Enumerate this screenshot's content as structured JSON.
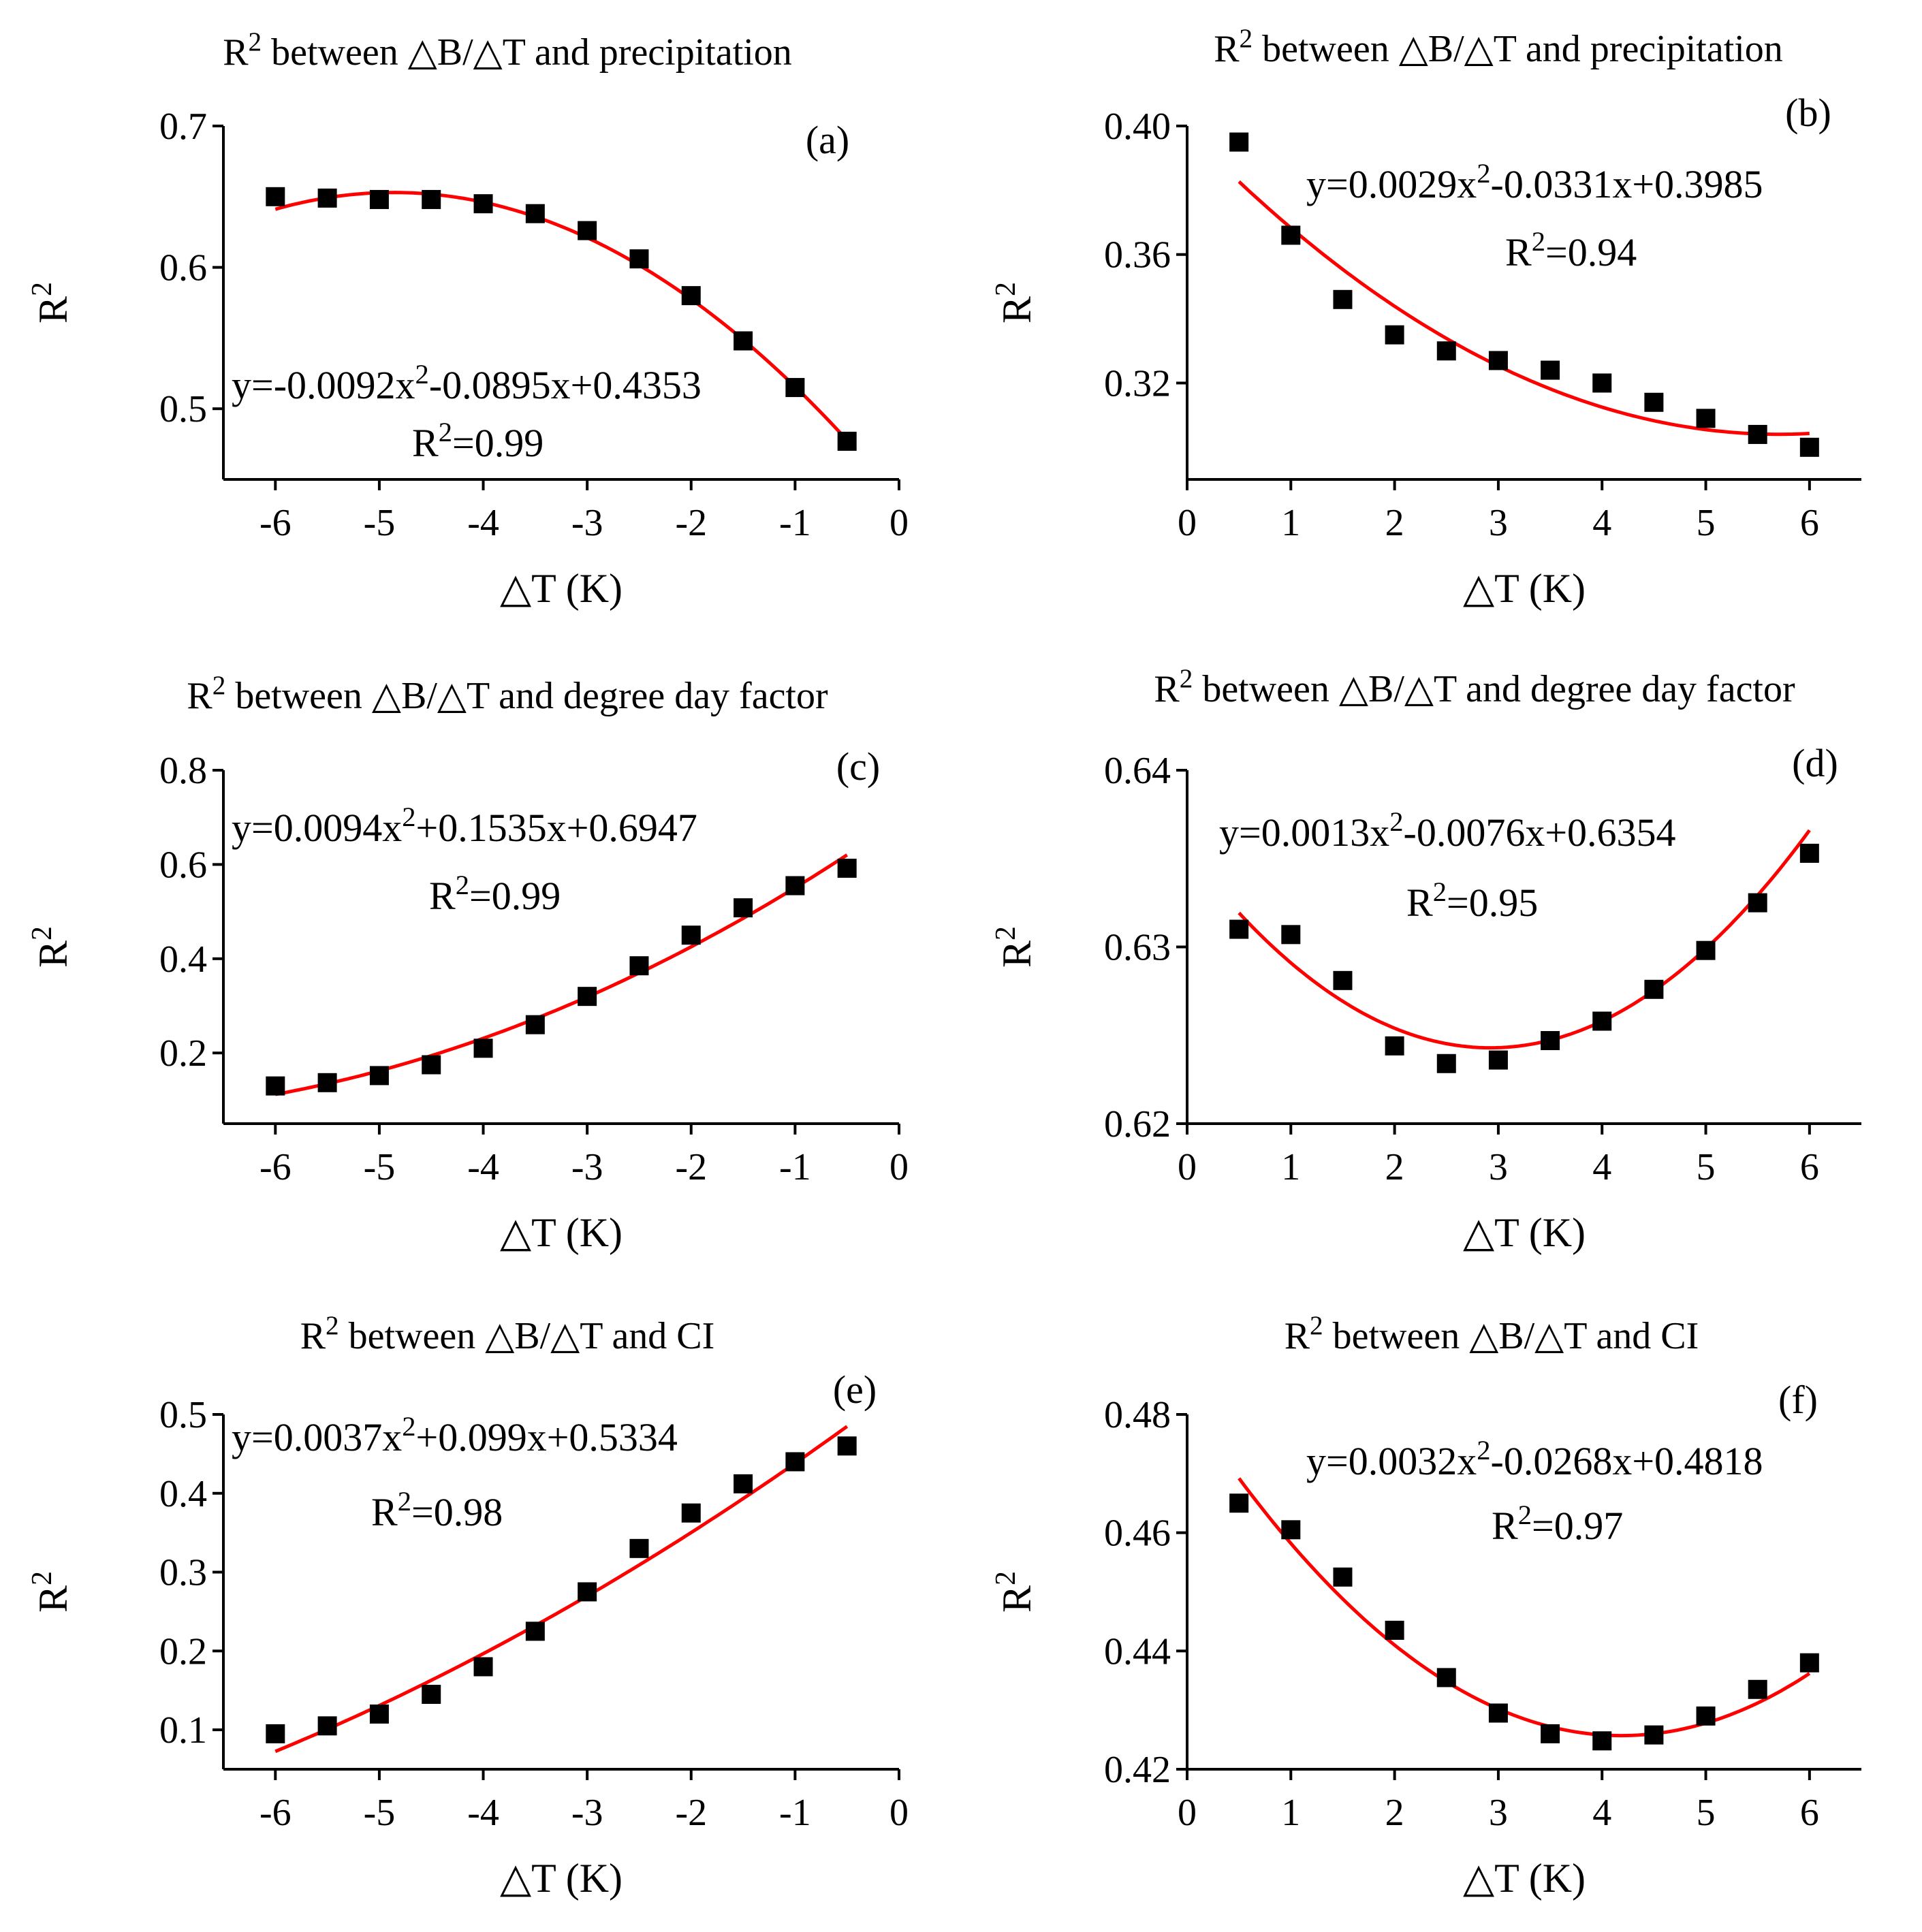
{
  "colors": {
    "fit": "#ff0000",
    "points": "#000000",
    "axes": "#000000"
  },
  "chart_data": [
    {
      "id": "a",
      "type": "scatter",
      "panel_label": "(a)",
      "title": {
        "pre": "R",
        "sup": "2",
        "post": " between △B/△T and  precipitation"
      },
      "xlabel": "△T (K)",
      "ylabel": {
        "pre": "R",
        "sup": "2"
      },
      "xlim": [
        -6.5,
        0
      ],
      "ylim": [
        0.45,
        0.7
      ],
      "xticks": [
        -6,
        -5,
        -4,
        -3,
        -2,
        -1,
        0
      ],
      "xtick_labels": [
        "-6",
        "-5",
        "-4",
        "-3",
        "-2",
        "-1",
        "0"
      ],
      "yticks": [
        0.5,
        0.6,
        0.7
      ],
      "ytick_labels": [
        "0.5",
        "0.6",
        "0.7"
      ],
      "x": [
        -6,
        -5.5,
        -5,
        -4.5,
        -4,
        -3.5,
        -3,
        -2.5,
        -2,
        -1.5,
        -1,
        -0.5
      ],
      "y": [
        0.65,
        0.649,
        0.648,
        0.648,
        0.645,
        0.638,
        0.626,
        0.606,
        0.58,
        0.548,
        0.515,
        0.477
      ],
      "fit_coeffs": [
        -0.0092,
        -0.0895,
        0.4353
      ],
      "equation": {
        "pre": "y=-0.0092x",
        "sup": "2",
        "post": "-0.0895x+0.4353"
      },
      "r2": {
        "pre": "R",
        "sup": "2",
        "post": "=0.99"
      }
    },
    {
      "id": "b",
      "type": "scatter",
      "panel_label": "(b)",
      "title": {
        "pre": "R",
        "sup": "2",
        "post": " between △B/△T and precipitation"
      },
      "xlabel": "△T (K)",
      "ylabel": {
        "pre": "R",
        "sup": "2"
      },
      "xlim": [
        0,
        6.5
      ],
      "ylim": [
        0.29,
        0.4
      ],
      "xticks": [
        0,
        1,
        2,
        3,
        4,
        5,
        6
      ],
      "xtick_labels": [
        "0",
        "1",
        "2",
        "3",
        "4",
        "5",
        "6"
      ],
      "yticks": [
        0.32,
        0.36,
        0.4
      ],
      "ytick_labels": [
        "0.32",
        "0.36",
        "0.40"
      ],
      "x": [
        0.5,
        1,
        1.5,
        2,
        2.5,
        3,
        3.5,
        4,
        4.5,
        5,
        5.5,
        6
      ],
      "y": [
        0.395,
        0.366,
        0.346,
        0.335,
        0.33,
        0.327,
        0.324,
        0.32,
        0.314,
        0.309,
        0.304,
        0.3
      ],
      "fit_coeffs": [
        0.0029,
        -0.0331,
        0.3985
      ],
      "equation": {
        "pre": "y=0.0029x",
        "sup": "2",
        "post": "-0.0331x+0.3985"
      },
      "r2": {
        "pre": "R",
        "sup": "2",
        "post": "=0.94"
      }
    },
    {
      "id": "c",
      "type": "scatter",
      "panel_label": "(c)",
      "title": {
        "pre": "R",
        "sup": "2",
        "post": " between △B/△T and degree day factor"
      },
      "xlabel": "△T (K)",
      "ylabel": {
        "pre": "R",
        "sup": "2"
      },
      "xlim": [
        -6.5,
        0
      ],
      "ylim": [
        0.05,
        0.8
      ],
      "xticks": [
        -6,
        -5,
        -4,
        -3,
        -2,
        -1,
        0
      ],
      "xtick_labels": [
        "-6",
        "-5",
        "-4",
        "-3",
        "-2",
        "-1",
        "0"
      ],
      "yticks": [
        0.2,
        0.4,
        0.6,
        0.8
      ],
      "ytick_labels": [
        "0.2",
        "0.4",
        "0.6",
        "0.8"
      ],
      "x": [
        -6,
        -5.5,
        -5,
        -4.5,
        -4,
        -3.5,
        -3,
        -2.5,
        -2,
        -1.5,
        -1,
        -0.5
      ],
      "y": [
        0.13,
        0.137,
        0.152,
        0.175,
        0.21,
        0.26,
        0.32,
        0.385,
        0.45,
        0.508,
        0.555,
        0.592
      ],
      "fit_coeffs": [
        0.0094,
        0.1535,
        0.6947
      ],
      "equation": {
        "pre": "y=0.0094x",
        "sup": "2",
        "post": "+0.1535x+0.6947"
      },
      "r2": {
        "pre": "R",
        "sup": "2",
        "post": "=0.99"
      }
    },
    {
      "id": "d",
      "type": "scatter",
      "panel_label": "(d)",
      "title": {
        "pre": "R",
        "sup": "2",
        "post": " between △B/△T and degree day factor"
      },
      "xlabel": "△T (K)",
      "ylabel": {
        "pre": "R",
        "sup": "2"
      },
      "xlim": [
        0,
        6.5
      ],
      "ylim": [
        0.62,
        0.64
      ],
      "xticks": [
        0,
        1,
        2,
        3,
        4,
        5,
        6
      ],
      "xtick_labels": [
        "0",
        "1",
        "2",
        "3",
        "4",
        "5",
        "6"
      ],
      "yticks": [
        0.62,
        0.63,
        0.64
      ],
      "ytick_labels": [
        "0.62",
        "0.63",
        "0.64"
      ],
      "x": [
        0.5,
        1,
        1.5,
        2,
        2.5,
        3,
        3.5,
        4,
        4.5,
        5,
        5.5,
        6
      ],
      "y": [
        0.631,
        0.6307,
        0.6281,
        0.6244,
        0.6234,
        0.6236,
        0.6247,
        0.6258,
        0.6276,
        0.6298,
        0.6325,
        0.6353
      ],
      "fit_coeffs": [
        0.0013,
        -0.0076,
        0.6354
      ],
      "equation": {
        "pre": "y=0.0013x",
        "sup": "2",
        "post": "-0.0076x+0.6354"
      },
      "r2": {
        "pre": "R",
        "sup": "2",
        "post": "=0.95"
      }
    },
    {
      "id": "e",
      "type": "scatter",
      "panel_label": "(e)",
      "title": {
        "pre": "R",
        "sup": "2",
        "post": " between △B/△T and CI"
      },
      "xlabel": "△T (K)",
      "ylabel": {
        "pre": "R",
        "sup": "2"
      },
      "xlim": [
        -6.5,
        0
      ],
      "ylim": [
        0.05,
        0.5
      ],
      "xticks": [
        -6,
        -5,
        -4,
        -3,
        -2,
        -1,
        0
      ],
      "xtick_labels": [
        "-6",
        "-5",
        "-4",
        "-3",
        "-2",
        "-1",
        "0"
      ],
      "yticks": [
        0.1,
        0.2,
        0.3,
        0.4,
        0.5
      ],
      "ytick_labels": [
        "0.1",
        "0.2",
        "0.3",
        "0.4",
        "0.5"
      ],
      "x": [
        -6,
        -5.5,
        -5,
        -4.5,
        -4,
        -3.5,
        -3,
        -2.5,
        -2,
        -1.5,
        -1,
        -0.5
      ],
      "y": [
        0.095,
        0.105,
        0.12,
        0.145,
        0.18,
        0.225,
        0.275,
        0.33,
        0.375,
        0.412,
        0.44,
        0.46
      ],
      "fit_coeffs": [
        0.0037,
        0.099,
        0.5334
      ],
      "equation": {
        "pre": "y=0.0037x",
        "sup": "2",
        "post": "+0.099x+0.5334"
      },
      "r2": {
        "pre": "R",
        "sup": "2",
        "post": "=0.98"
      }
    },
    {
      "id": "f",
      "type": "scatter",
      "panel_label": "(f)",
      "title": {
        "pre": "R",
        "sup": "2",
        "post": " between △B/△T and CI"
      },
      "xlabel": "△T (K)",
      "ylabel": {
        "pre": "R",
        "sup": "2"
      },
      "xlim": [
        0,
        6.5
      ],
      "ylim": [
        0.42,
        0.48
      ],
      "xticks": [
        0,
        1,
        2,
        3,
        4,
        5,
        6
      ],
      "xtick_labels": [
        "0",
        "1",
        "2",
        "3",
        "4",
        "5",
        "6"
      ],
      "yticks": [
        0.42,
        0.44,
        0.46,
        0.48
      ],
      "ytick_labels": [
        "0.42",
        "0.44",
        "0.46",
        "0.48"
      ],
      "x": [
        0.5,
        1,
        1.5,
        2,
        2.5,
        3,
        3.5,
        4,
        4.5,
        5,
        5.5,
        6
      ],
      "y": [
        0.465,
        0.4605,
        0.4525,
        0.4435,
        0.4355,
        0.4295,
        0.426,
        0.4248,
        0.4258,
        0.429,
        0.4335,
        0.438
      ],
      "fit_coeffs": [
        0.0032,
        -0.0268,
        0.4818
      ],
      "equation": {
        "pre": "y=0.0032x",
        "sup": "2",
        "post": "-0.0268x+0.4818"
      },
      "r2": {
        "pre": "R",
        "sup": "2",
        "post": "=0.97"
      }
    }
  ]
}
